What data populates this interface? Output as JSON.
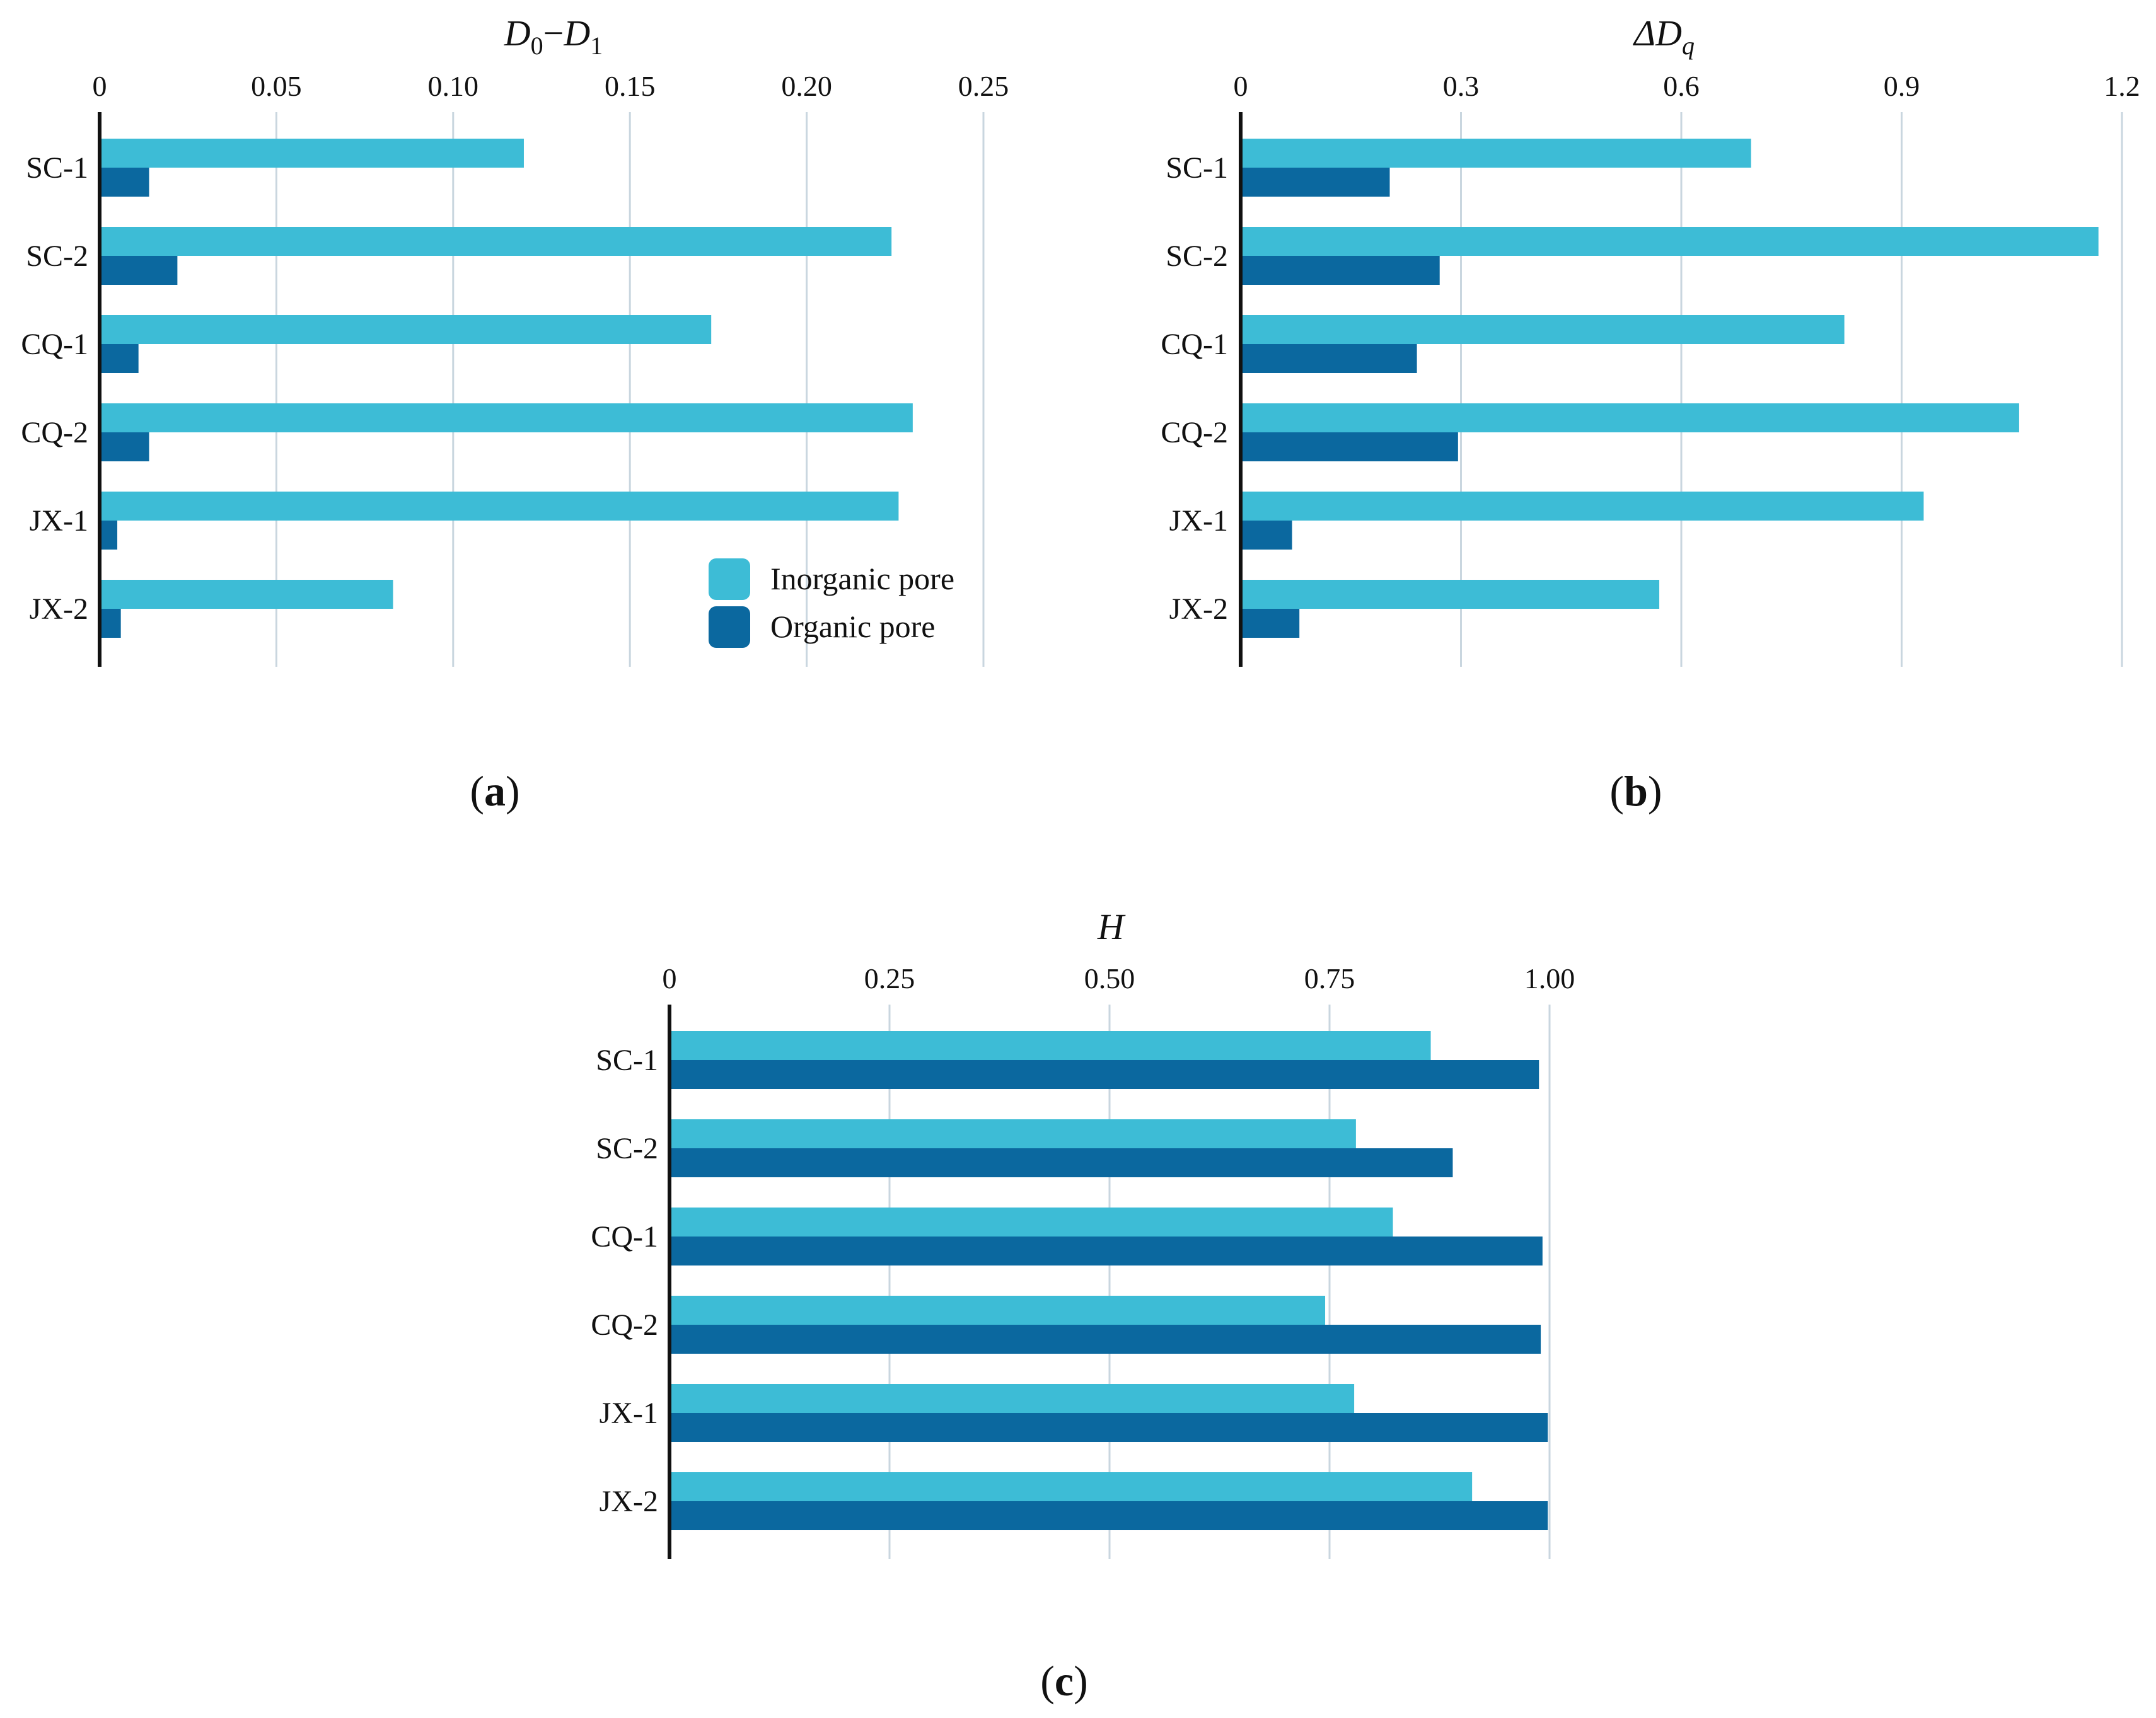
{
  "figure": {
    "legend": {
      "inorganic": "Inorganic pore",
      "organic": "Organic pore"
    },
    "colors": {
      "inorganic": "#3dbcd6",
      "organic": "#0b689f",
      "grid": "#c9d6df",
      "axis": "#111111"
    }
  },
  "chart_data": [
    {
      "type": "bar",
      "orientation": "horizontal",
      "panel_label": "a",
      "title": {
        "main": "D",
        "sub1": "0",
        "dash": "−",
        "main2": "D",
        "sub2": "1"
      },
      "categories": [
        "SC-1",
        "SC-2",
        "CQ-1",
        "CQ-2",
        "JX-1",
        "JX-2"
      ],
      "series": [
        {
          "name": "Inorganic pore",
          "values": [
            0.12,
            0.224,
            0.173,
            0.23,
            0.226,
            0.083
          ]
        },
        {
          "name": "Organic pore",
          "values": [
            0.014,
            0.022,
            0.011,
            0.014,
            0.005,
            0.006
          ]
        }
      ],
      "xlim": [
        0,
        0.25
      ],
      "ticks": [
        0,
        0.05,
        0.1,
        0.15,
        0.2,
        0.25
      ],
      "tick_labels": [
        "0",
        "0.05",
        "0.10",
        "0.15",
        "0.20",
        "0.25"
      ],
      "grid": true,
      "legend_position": "bottom-right"
    },
    {
      "type": "bar",
      "orientation": "horizontal",
      "panel_label": "b",
      "title": {
        "main": "ΔD",
        "sub1": "q"
      },
      "categories": [
        "SC-1",
        "SC-2",
        "CQ-1",
        "CQ-2",
        "JX-1",
        "JX-2"
      ],
      "series": [
        {
          "name": "Inorganic pore",
          "values": [
            0.695,
            1.168,
            0.822,
            1.06,
            0.93,
            0.57
          ]
        },
        {
          "name": "Organic pore",
          "values": [
            0.203,
            0.271,
            0.24,
            0.296,
            0.07,
            0.08
          ]
        }
      ],
      "xlim": [
        0,
        1.2
      ],
      "ticks": [
        0,
        0.3,
        0.6,
        0.9,
        1.2
      ],
      "tick_labels": [
        "0",
        "0.3",
        "0.6",
        "0.9",
        "1.2"
      ],
      "grid": true,
      "legend_position": "none"
    },
    {
      "type": "bar",
      "orientation": "horizontal",
      "panel_label": "c",
      "title": {
        "main": "H"
      },
      "categories": [
        "SC-1",
        "SC-2",
        "CQ-1",
        "CQ-2",
        "JX-1",
        "JX-2"
      ],
      "series": [
        {
          "name": "Inorganic pore",
          "values": [
            0.865,
            0.78,
            0.822,
            0.745,
            0.778,
            0.912
          ]
        },
        {
          "name": "Organic pore",
          "values": [
            0.988,
            0.89,
            0.992,
            0.99,
            0.998,
            0.998
          ]
        }
      ],
      "xlim": [
        0,
        1.0
      ],
      "ticks": [
        0,
        0.25,
        0.5,
        0.75,
        1.0
      ],
      "tick_labels": [
        "0",
        "0.25",
        "0.50",
        "0.75",
        "1.00"
      ],
      "grid": true,
      "legend_position": "none"
    }
  ]
}
